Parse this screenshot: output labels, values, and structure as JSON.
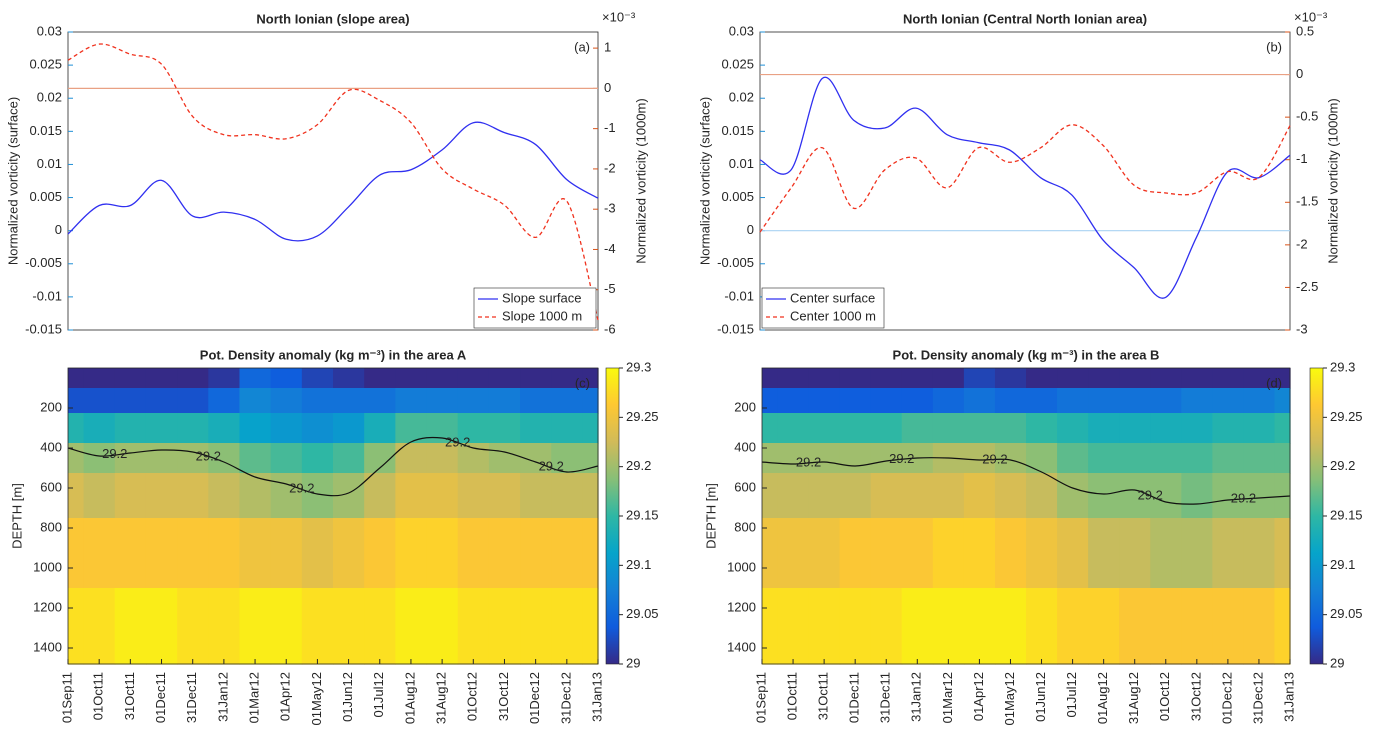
{
  "chart_data": [
    {
      "type": "line",
      "title": "North Ionian (slope area)",
      "panel_label": "(a)",
      "ylabel": "Normalized vorticity (surface)",
      "y2label": "Normalized vorticity (1000m)",
      "y2_exponent": "×10⁻³",
      "ylim": [
        -0.015,
        0.03
      ],
      "yticks": [
        -0.015,
        -0.01,
        -0.005,
        0,
        0.005,
        0.01,
        0.015,
        0.02,
        0.025,
        0.03
      ],
      "y2lim": [
        -6,
        1.4
      ],
      "y2ticks": [
        -6,
        -5,
        -4,
        -3,
        -2,
        -1,
        0,
        1
      ],
      "y_color": "#1f8fd6",
      "y2_color": "#d95319",
      "legend": "lower-right",
      "hlines": [
        {
          "axis": "y2",
          "value": 0,
          "color": "#e9a184"
        }
      ],
      "series": [
        {
          "name": "Slope surface",
          "color": "#3030f0",
          "dash": false,
          "values": [
            -0.0005,
            0.0038,
            0.0038,
            0.0076,
            0.0022,
            0.0028,
            0.0017,
            -0.0013,
            -0.0008,
            0.0036,
            0.0084,
            0.0092,
            0.0122,
            0.0163,
            0.0148,
            0.013,
            0.0077,
            0.0049
          ]
        },
        {
          "name": "Slope 1000 m",
          "color": "#f0321e",
          "dash": true,
          "axis": "y2",
          "values": [
            0.7,
            1.1,
            0.85,
            0.6,
            -0.7,
            -1.15,
            -1.15,
            -1.25,
            -0.9,
            -0.05,
            -0.3,
            -0.85,
            -2.0,
            -2.5,
            -2.9,
            -3.7,
            -2.8,
            -5.75
          ]
        }
      ]
    },
    {
      "type": "line",
      "title": "North Ionian (Central North Ionian area)",
      "panel_label": "(b)",
      "ylabel": "Normalized vorticity (surface)",
      "y2label": "Normalized vorticity (1000m)",
      "y2_exponent": "×10⁻³",
      "ylim": [
        -0.015,
        0.03
      ],
      "yticks": [
        -0.015,
        -0.01,
        -0.005,
        0,
        0.005,
        0.01,
        0.015,
        0.02,
        0.025,
        0.03
      ],
      "y2lim": [
        -3,
        0.5
      ],
      "y2ticks": [
        -3,
        -2.5,
        -2,
        -1.5,
        -1,
        -0.5,
        0,
        0.5
      ],
      "y_color": "#1f8fd6",
      "y2_color": "#d95319",
      "legend": "lower-left",
      "hlines": [
        {
          "axis": "y2",
          "value": 0,
          "color": "#e9a184"
        },
        {
          "axis": "y",
          "value": 0,
          "color": "#a9d3f2"
        }
      ],
      "series": [
        {
          "name": "Center surface",
          "color": "#3030f0",
          "dash": false,
          "values": [
            0.0107,
            0.0092,
            0.023,
            0.0167,
            0.0155,
            0.0185,
            0.0145,
            0.0133,
            0.0122,
            0.008,
            0.0054,
            -0.0014,
            -0.0056,
            -0.0101,
            -0.001,
            0.0089,
            0.008,
            0.0114
          ]
        },
        {
          "name": "Center 1000 m",
          "color": "#f0321e",
          "dash": true,
          "axis": "y2",
          "values": [
            -1.85,
            -1.33,
            -0.86,
            -1.57,
            -1.12,
            -0.98,
            -1.33,
            -0.86,
            -1.03,
            -0.86,
            -0.59,
            -0.83,
            -1.3,
            -1.39,
            -1.39,
            -1.14,
            -1.21,
            -0.6
          ]
        }
      ]
    },
    {
      "type": "heatmap",
      "title": "Pot. Density anomaly (kg m⁻³) in the area A",
      "panel_label": "(c)",
      "ylabel": "DEPTH [m]",
      "x": [
        "01Sep11",
        "01Oct11",
        "31Oct11",
        "01Dec11",
        "31Dec11",
        "31Jan12",
        "01Mar12",
        "01Apr12",
        "01May12",
        "01Jun12",
        "01Jul12",
        "01Aug12",
        "31Aug12",
        "01Oct12",
        "31Oct12",
        "01Dec12",
        "31Dec12",
        "31Jan13"
      ],
      "ylim": [
        0,
        1480
      ],
      "yticks": [
        200,
        400,
        600,
        800,
        1000,
        1200,
        1400
      ],
      "depths": [
        50,
        150,
        300,
        450,
        600,
        900,
        1300
      ],
      "values": [
        [
          29.0,
          29.0,
          29.0,
          29.0,
          29.0,
          29.01,
          29.05,
          29.04,
          29.02,
          29.01,
          29.0,
          29.0,
          29.0,
          29.0,
          29.0,
          29.0,
          29.0,
          29.0
        ],
        [
          29.03,
          29.03,
          29.03,
          29.03,
          29.03,
          29.05,
          29.08,
          29.07,
          29.06,
          29.06,
          29.06,
          29.07,
          29.07,
          29.07,
          29.07,
          29.06,
          29.06,
          29.06
        ],
        [
          29.14,
          29.13,
          29.14,
          29.14,
          29.14,
          29.13,
          29.11,
          29.1,
          29.09,
          29.1,
          29.13,
          29.16,
          29.16,
          29.15,
          29.15,
          29.14,
          29.14,
          29.14
        ],
        [
          29.2,
          29.19,
          29.2,
          29.2,
          29.2,
          29.19,
          29.17,
          29.16,
          29.15,
          29.16,
          29.19,
          29.22,
          29.22,
          29.21,
          29.2,
          29.2,
          29.19,
          29.19
        ],
        [
          29.23,
          29.22,
          29.23,
          29.23,
          29.23,
          29.22,
          29.21,
          29.2,
          29.19,
          29.2,
          29.22,
          29.24,
          29.24,
          29.23,
          29.23,
          29.22,
          29.22,
          29.22
        ],
        [
          29.26,
          29.26,
          29.26,
          29.26,
          29.26,
          29.26,
          29.25,
          29.25,
          29.24,
          29.25,
          29.26,
          29.27,
          29.27,
          29.26,
          29.26,
          29.26,
          29.26,
          29.26
        ],
        [
          29.28,
          29.28,
          29.29,
          29.29,
          29.28,
          29.28,
          29.29,
          29.29,
          29.28,
          29.28,
          29.28,
          29.29,
          29.29,
          29.28,
          29.28,
          29.28,
          29.28,
          29.28
        ]
      ],
      "contour": {
        "level": 29.2,
        "depths": [
          400,
          440,
          425,
          410,
          420,
          470,
          545,
          580,
          630,
          625,
          500,
          370,
          350,
          400,
          420,
          470,
          520,
          490
        ]
      },
      "clim": [
        29,
        29.3
      ],
      "cticks": [
        29,
        29.05,
        29.1,
        29.15,
        29.2,
        29.25,
        29.3
      ],
      "colormap": [
        "#352a87",
        "#0f5cdd",
        "#1481d6",
        "#06a4ca",
        "#2eb7a4",
        "#87bf77",
        "#d1bb59",
        "#fec832",
        "#f9fb0e"
      ]
    },
    {
      "type": "heatmap",
      "title": "Pot. Density anomaly (kg m⁻³) in the area B",
      "panel_label": "(d)",
      "ylabel": "DEPTH [m]",
      "x": [
        "01Sep11",
        "01Oct11",
        "31Oct11",
        "01Dec11",
        "31Dec11",
        "31Jan12",
        "01Mar12",
        "01Apr12",
        "01May12",
        "01Jun12",
        "01Jul12",
        "01Aug12",
        "31Aug12",
        "01Oct12",
        "31Oct12",
        "01Dec12",
        "31Dec12",
        "31Jan13"
      ],
      "ylim": [
        0,
        1480
      ],
      "yticks": [
        200,
        400,
        600,
        800,
        1000,
        1200,
        1400
      ],
      "depths": [
        50,
        150,
        300,
        450,
        600,
        900,
        1300
      ],
      "values": [
        [
          29.0,
          29.0,
          29.0,
          29.0,
          29.0,
          29.0,
          29.0,
          29.02,
          29.01,
          29.0,
          29.0,
          29.0,
          29.0,
          29.0,
          29.0,
          29.0,
          29.0,
          29.0
        ],
        [
          29.04,
          29.04,
          29.04,
          29.04,
          29.04,
          29.04,
          29.05,
          29.06,
          29.05,
          29.05,
          29.06,
          29.06,
          29.06,
          29.06,
          29.07,
          29.07,
          29.07,
          29.08
        ],
        [
          29.15,
          29.15,
          29.15,
          29.15,
          29.15,
          29.16,
          29.16,
          29.16,
          29.16,
          29.15,
          29.14,
          29.13,
          29.13,
          29.13,
          29.13,
          29.14,
          29.14,
          29.15
        ],
        [
          29.2,
          29.2,
          29.2,
          29.2,
          29.2,
          29.2,
          29.21,
          29.21,
          29.2,
          29.19,
          29.17,
          29.16,
          29.16,
          29.16,
          29.16,
          29.17,
          29.17,
          29.17
        ],
        [
          29.22,
          29.22,
          29.22,
          29.22,
          29.23,
          29.23,
          29.23,
          29.24,
          29.23,
          29.22,
          29.2,
          29.19,
          29.19,
          29.19,
          29.18,
          29.19,
          29.19,
          29.19
        ],
        [
          29.25,
          29.25,
          29.25,
          29.26,
          29.26,
          29.26,
          29.27,
          29.27,
          29.26,
          29.25,
          29.24,
          29.22,
          29.22,
          29.21,
          29.21,
          29.22,
          29.22,
          29.23
        ],
        [
          29.28,
          29.28,
          29.28,
          29.28,
          29.28,
          29.29,
          29.29,
          29.29,
          29.29,
          29.28,
          29.27,
          29.27,
          29.26,
          29.26,
          29.26,
          29.26,
          29.26,
          29.27
        ]
      ],
      "contour": {
        "level": 29.2,
        "depths": [
          470,
          480,
          470,
          490,
          465,
          450,
          450,
          460,
          460,
          520,
          600,
          630,
          610,
          670,
          680,
          660,
          650,
          640
        ]
      },
      "clim": [
        29,
        29.3
      ],
      "cticks": [
        29,
        29.05,
        29.1,
        29.15,
        29.2,
        29.25,
        29.3
      ],
      "colormap": [
        "#352a87",
        "#0f5cdd",
        "#1481d6",
        "#06a4ca",
        "#2eb7a4",
        "#87bf77",
        "#d1bb59",
        "#fec832",
        "#f9fb0e"
      ]
    }
  ]
}
